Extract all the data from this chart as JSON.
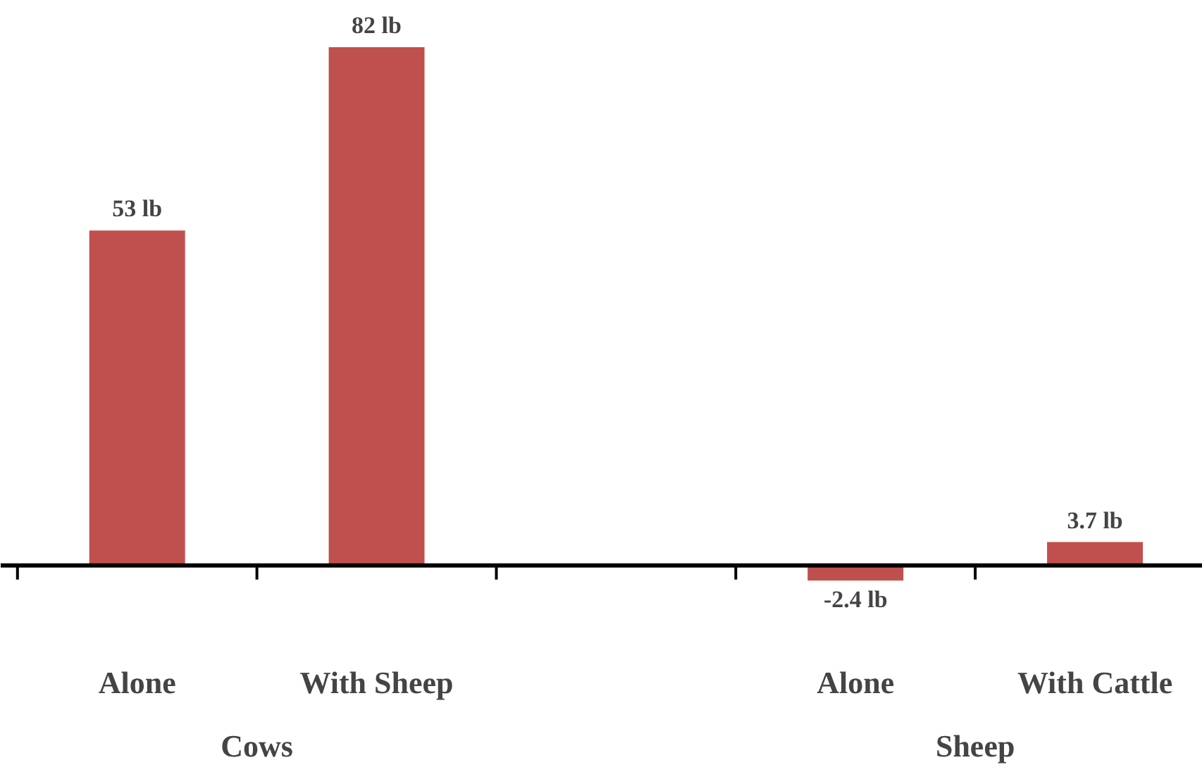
{
  "chart_data": {
    "type": "bar",
    "categories": [
      "Alone",
      "With Sheep",
      null,
      "Alone",
      "With Cattle"
    ],
    "values": [
      53,
      82,
      null,
      -2.4,
      3.7
    ],
    "value_labels": [
      "53 lb",
      "82 lb",
      null,
      "-2.4 lb",
      "3.7 lb"
    ],
    "color": "#c0504d",
    "annotations": [
      "Cows",
      "Sheep"
    ],
    "grid": false
  }
}
